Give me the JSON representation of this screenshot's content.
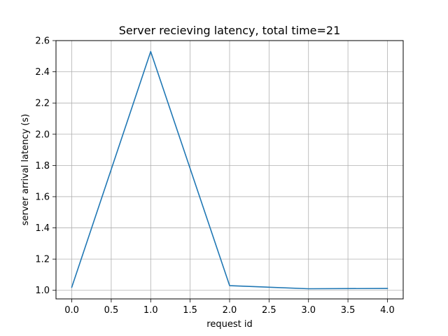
{
  "chart_data": {
    "type": "line",
    "title": "Server recieving latency, total time=21",
    "xlabel": "request id",
    "ylabel": "server arrival latency (s)",
    "xlim": [
      -0.2,
      4.2
    ],
    "ylim": [
      0.945,
      2.6
    ],
    "grid": true,
    "x_ticks": [
      0.0,
      0.5,
      1.0,
      1.5,
      2.0,
      2.5,
      3.0,
      3.5,
      4.0
    ],
    "x_tick_labels": [
      "0.0",
      "0.5",
      "1.0",
      "1.5",
      "2.0",
      "2.5",
      "3.0",
      "3.5",
      "4.0"
    ],
    "y_ticks": [
      1.0,
      1.2,
      1.4,
      1.6,
      1.8,
      2.0,
      2.2,
      2.4,
      2.6
    ],
    "y_tick_labels": [
      "1.0",
      "1.2",
      "1.4",
      "1.6",
      "1.8",
      "2.0",
      "2.2",
      "2.4",
      "2.6"
    ],
    "series": [
      {
        "x": [
          0,
          1,
          2,
          3,
          4
        ],
        "values": [
          1.02,
          2.53,
          1.03,
          1.01,
          1.012
        ],
        "color": "#1f77b4"
      }
    ]
  }
}
